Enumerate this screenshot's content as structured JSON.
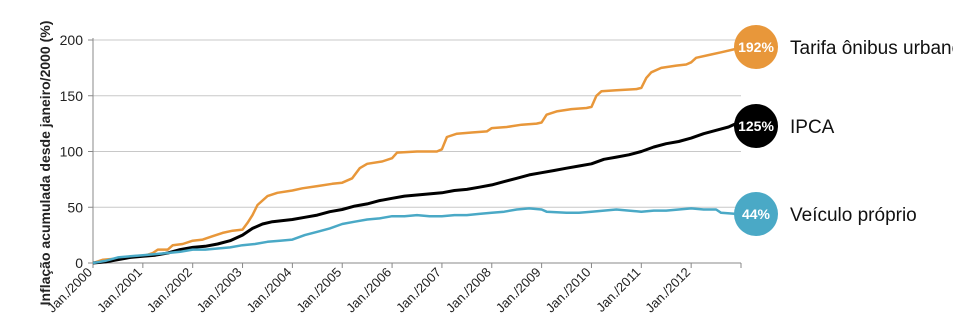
{
  "chart_data": {
    "type": "line",
    "title": "",
    "xlabel": "",
    "ylabel": "Inflação acumulada desde janeiro/2000 (%)",
    "ylim": [
      0,
      200
    ],
    "yticks": [
      0,
      50,
      100,
      150,
      200
    ],
    "xticks": [
      "Jan./2000",
      "Jan./2001",
      "Jan./2002",
      "Jan./2003",
      "Jan./2004",
      "Jan./2005",
      "Jan./2006",
      "Jan./2007",
      "Jan./2008",
      "Jan./2009",
      "Jan./2010",
      "Jan./2011",
      "Jan./2012"
    ],
    "x_range_years": [
      2000,
      2013
    ],
    "grid": "horizontal",
    "legend": "right, end-of-line labels",
    "series": [
      {
        "name": "Tarifa ônibus urbano",
        "badge": "192%",
        "color": "#e8973a",
        "points": [
          [
            2000.0,
            0
          ],
          [
            2000.2,
            3
          ],
          [
            2000.5,
            4
          ],
          [
            2000.8,
            6
          ],
          [
            2001.0,
            6
          ],
          [
            2001.2,
            9
          ],
          [
            2001.3,
            12
          ],
          [
            2001.5,
            12
          ],
          [
            2001.6,
            16
          ],
          [
            2001.8,
            17
          ],
          [
            2002.0,
            20
          ],
          [
            2002.2,
            21
          ],
          [
            2002.4,
            24
          ],
          [
            2002.6,
            27
          ],
          [
            2002.8,
            29
          ],
          [
            2003.0,
            30
          ],
          [
            2003.1,
            36
          ],
          [
            2003.2,
            43
          ],
          [
            2003.3,
            52
          ],
          [
            2003.5,
            60
          ],
          [
            2003.7,
            63
          ],
          [
            2004.0,
            65
          ],
          [
            2004.2,
            67
          ],
          [
            2004.5,
            69
          ],
          [
            2004.8,
            71
          ],
          [
            2005.0,
            72
          ],
          [
            2005.2,
            76
          ],
          [
            2005.35,
            85
          ],
          [
            2005.5,
            89
          ],
          [
            2005.8,
            91
          ],
          [
            2006.0,
            94
          ],
          [
            2006.1,
            99
          ],
          [
            2006.5,
            100
          ],
          [
            2006.9,
            100
          ],
          [
            2007.0,
            102
          ],
          [
            2007.1,
            113
          ],
          [
            2007.3,
            116
          ],
          [
            2007.6,
            117
          ],
          [
            2007.9,
            118
          ],
          [
            2008.0,
            121
          ],
          [
            2008.3,
            122
          ],
          [
            2008.6,
            124
          ],
          [
            2008.9,
            125
          ],
          [
            2009.0,
            126
          ],
          [
            2009.1,
            133
          ],
          [
            2009.3,
            136
          ],
          [
            2009.6,
            138
          ],
          [
            2009.9,
            139
          ],
          [
            2010.0,
            140
          ],
          [
            2010.1,
            150
          ],
          [
            2010.2,
            154
          ],
          [
            2010.5,
            155
          ],
          [
            2010.9,
            156
          ],
          [
            2011.0,
            157
          ],
          [
            2011.1,
            166
          ],
          [
            2011.2,
            171
          ],
          [
            2011.4,
            175
          ],
          [
            2011.7,
            177
          ],
          [
            2011.9,
            178
          ],
          [
            2012.0,
            180
          ],
          [
            2012.1,
            184
          ],
          [
            2012.4,
            187
          ],
          [
            2012.6,
            189
          ],
          [
            2012.9,
            192
          ]
        ]
      },
      {
        "name": "IPCA",
        "badge": "125%",
        "color": "#000000",
        "points": [
          [
            2000.0,
            0
          ],
          [
            2000.25,
            1
          ],
          [
            2000.5,
            3
          ],
          [
            2000.75,
            5
          ],
          [
            2001.0,
            6
          ],
          [
            2001.25,
            7
          ],
          [
            2001.5,
            9
          ],
          [
            2001.75,
            12
          ],
          [
            2002.0,
            14
          ],
          [
            2002.25,
            15
          ],
          [
            2002.5,
            17
          ],
          [
            2002.75,
            20
          ],
          [
            2003.0,
            25
          ],
          [
            2003.2,
            31
          ],
          [
            2003.4,
            35
          ],
          [
            2003.6,
            37
          ],
          [
            2003.8,
            38
          ],
          [
            2004.0,
            39
          ],
          [
            2004.25,
            41
          ],
          [
            2004.5,
            43
          ],
          [
            2004.75,
            46
          ],
          [
            2005.0,
            48
          ],
          [
            2005.25,
            51
          ],
          [
            2005.5,
            53
          ],
          [
            2005.75,
            56
          ],
          [
            2006.0,
            58
          ],
          [
            2006.25,
            60
          ],
          [
            2006.5,
            61
          ],
          [
            2006.75,
            62
          ],
          [
            2007.0,
            63
          ],
          [
            2007.25,
            65
          ],
          [
            2007.5,
            66
          ],
          [
            2007.75,
            68
          ],
          [
            2008.0,
            70
          ],
          [
            2008.25,
            73
          ],
          [
            2008.5,
            76
          ],
          [
            2008.75,
            79
          ],
          [
            2009.0,
            81
          ],
          [
            2009.25,
            83
          ],
          [
            2009.5,
            85
          ],
          [
            2009.75,
            87
          ],
          [
            2010.0,
            89
          ],
          [
            2010.25,
            93
          ],
          [
            2010.5,
            95
          ],
          [
            2010.75,
            97
          ],
          [
            2011.0,
            100
          ],
          [
            2011.25,
            104
          ],
          [
            2011.5,
            107
          ],
          [
            2011.75,
            109
          ],
          [
            2012.0,
            112
          ],
          [
            2012.25,
            116
          ],
          [
            2012.5,
            119
          ],
          [
            2012.75,
            122
          ],
          [
            2012.9,
            125
          ]
        ]
      },
      {
        "name": "Veículo próprio",
        "badge": "44%",
        "color": "#4aa9c6",
        "points": [
          [
            2000.0,
            0
          ],
          [
            2000.25,
            2
          ],
          [
            2000.5,
            5
          ],
          [
            2000.75,
            6
          ],
          [
            2001.0,
            7
          ],
          [
            2001.25,
            8
          ],
          [
            2001.5,
            9
          ],
          [
            2001.75,
            10
          ],
          [
            2002.0,
            12
          ],
          [
            2002.25,
            12
          ],
          [
            2002.5,
            13
          ],
          [
            2002.75,
            14
          ],
          [
            2003.0,
            16
          ],
          [
            2003.25,
            17
          ],
          [
            2003.5,
            19
          ],
          [
            2003.75,
            20
          ],
          [
            2004.0,
            21
          ],
          [
            2004.25,
            25
          ],
          [
            2004.5,
            28
          ],
          [
            2004.75,
            31
          ],
          [
            2005.0,
            35
          ],
          [
            2005.25,
            37
          ],
          [
            2005.5,
            39
          ],
          [
            2005.75,
            40
          ],
          [
            2006.0,
            42
          ],
          [
            2006.25,
            42
          ],
          [
            2006.5,
            43
          ],
          [
            2006.75,
            42
          ],
          [
            2007.0,
            42
          ],
          [
            2007.25,
            43
          ],
          [
            2007.5,
            43
          ],
          [
            2007.75,
            44
          ],
          [
            2008.0,
            45
          ],
          [
            2008.25,
            46
          ],
          [
            2008.5,
            48
          ],
          [
            2008.75,
            49
          ],
          [
            2009.0,
            48
          ],
          [
            2009.1,
            46
          ],
          [
            2009.5,
            45
          ],
          [
            2009.75,
            45
          ],
          [
            2010.0,
            46
          ],
          [
            2010.25,
            47
          ],
          [
            2010.5,
            48
          ],
          [
            2010.75,
            47
          ],
          [
            2011.0,
            46
          ],
          [
            2011.25,
            47
          ],
          [
            2011.5,
            47
          ],
          [
            2011.75,
            48
          ],
          [
            2012.0,
            49
          ],
          [
            2012.25,
            48
          ],
          [
            2012.5,
            48
          ],
          [
            2012.6,
            45
          ],
          [
            2012.9,
            44
          ]
        ]
      }
    ]
  }
}
